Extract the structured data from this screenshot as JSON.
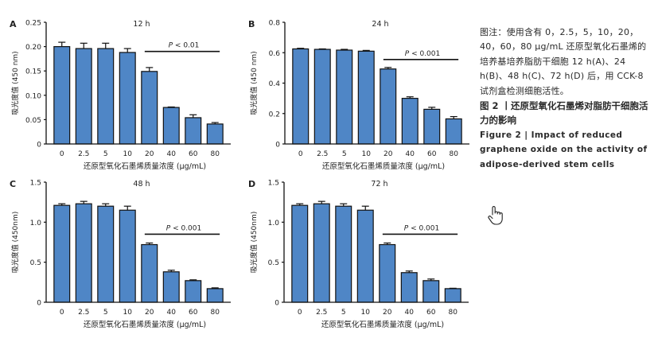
{
  "chart_data": [
    {
      "type": "bar",
      "panel_label": "A",
      "title": "12 h",
      "xlabel": "还原型氧化石墨烯质量浓度 (μg/mL)",
      "ylabel": "吸光度值 (450 nm)",
      "categories": [
        "0",
        "2.5",
        "5",
        "10",
        "20",
        "40",
        "60",
        "80"
      ],
      "values": [
        0.2,
        0.196,
        0.196,
        0.188,
        0.149,
        0.075,
        0.054,
        0.041
      ],
      "errors": [
        0.009,
        0.011,
        0.011,
        0.008,
        0.008,
        0.001,
        0.006,
        0.003
      ],
      "ylim": [
        0,
        0.25
      ],
      "yticks": [
        0,
        0.05,
        0.1,
        0.15,
        0.2,
        0.25
      ],
      "ytick_labels": [
        "0",
        "0.05",
        "0.10",
        "0.15",
        "0.20",
        "0.25"
      ],
      "significance": {
        "label_italic": "P",
        "label_rest": " < 0.01",
        "from_category": "20",
        "to_category": "80",
        "level": 0.19
      },
      "bar_color": "#4f86c6",
      "grid": false
    },
    {
      "type": "bar",
      "panel_label": "B",
      "title": "24 h",
      "xlabel": "还原型氧化石墨烯质量浓度 (μg/mL)",
      "ylabel": "吸光度值 (450 nm)",
      "categories": [
        "0",
        "2.5",
        "5",
        "10",
        "20",
        "40",
        "60",
        "80"
      ],
      "values": [
        0.625,
        0.622,
        0.617,
        0.61,
        0.493,
        0.3,
        0.228,
        0.165
      ],
      "errors": [
        0.004,
        0.003,
        0.005,
        0.005,
        0.01,
        0.01,
        0.013,
        0.015
      ],
      "ylim": [
        0,
        0.8
      ],
      "yticks": [
        0,
        0.2,
        0.4,
        0.6,
        0.8
      ],
      "ytick_labels": [
        "0",
        "0.2",
        "0.4",
        "0.6",
        "0.8"
      ],
      "significance": {
        "label_italic": "P",
        "label_rest": " < 0.001",
        "from_category": "20",
        "to_category": "80",
        "level": 0.555
      },
      "bar_color": "#4f86c6",
      "grid": false
    },
    {
      "type": "bar",
      "panel_label": "C",
      "title": "48 h",
      "xlabel": "还原型氧化石墨烯质量浓度 (μg/mL)",
      "ylabel": "吸光度值 (450nm)",
      "categories": [
        "0",
        "2.5",
        "5",
        "10",
        "20",
        "40",
        "60",
        "80"
      ],
      "values": [
        1.21,
        1.23,
        1.2,
        1.15,
        0.72,
        0.38,
        0.27,
        0.17
      ],
      "errors": [
        0.02,
        0.03,
        0.03,
        0.05,
        0.02,
        0.02,
        0.01,
        0.01
      ],
      "ylim": [
        0,
        1.5
      ],
      "yticks": [
        0,
        0.5,
        1.0,
        1.5
      ],
      "ytick_labels": [
        "0",
        "0.5",
        "1.0",
        "1.5"
      ],
      "significance": {
        "label_italic": "P",
        "label_rest": " < 0.001",
        "from_category": "20",
        "to_category": "80",
        "level": 0.85
      },
      "bar_color": "#4f86c6",
      "grid": false
    },
    {
      "type": "bar",
      "panel_label": "D",
      "title": "72 h",
      "xlabel": "还原型氧化石墨烯质量浓度 (μg/mL)",
      "ylabel": "吸光度值 (450nm)",
      "categories": [
        "0",
        "2.5",
        "5",
        "10",
        "20",
        "40",
        "60",
        "80"
      ],
      "values": [
        1.21,
        1.23,
        1.2,
        1.15,
        0.72,
        0.37,
        0.27,
        0.17
      ],
      "errors": [
        0.02,
        0.03,
        0.03,
        0.05,
        0.02,
        0.02,
        0.02,
        0.005
      ],
      "ylim": [
        0,
        1.5
      ],
      "yticks": [
        0,
        0.5,
        1.0,
        1.5
      ],
      "ytick_labels": [
        "0",
        "0.5",
        "1.0",
        "1.5"
      ],
      "significance": {
        "label_italic": "P",
        "label_rest": " < 0.001",
        "from_category": "20",
        "to_category": "80",
        "level": 0.85
      },
      "bar_color": "#4f86c6",
      "grid": false
    }
  ],
  "caption": {
    "note": "图注：使用含有 0，2.5，5，10，20，40，60，80 μg/mL 还原型氧化石墨烯的培养基培养脂肪干细胞 12 h(A)、24 h(B)、48 h(C)、72 h(D) 后，用 CCK-8 试剂盒检测细胞活性。",
    "title_cn": "图 2 丨还原型氧化石墨烯对脂肪干细胞活力的影响",
    "title_en": "Figure 2 | Impact of reduced graphene oxide on the activity of adipose-derived stem cells"
  },
  "cursor": {
    "icon": "hand-pointer-icon"
  }
}
